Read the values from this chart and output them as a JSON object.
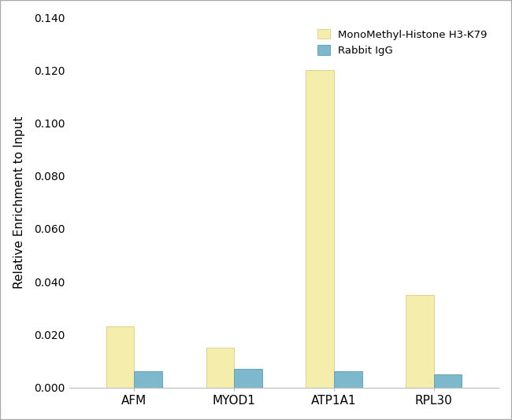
{
  "categories": [
    "AFM",
    "MYOD1",
    "ATP1A1",
    "RPL30"
  ],
  "series": [
    {
      "label": "MonoMethyl-Histone H3-K79",
      "values": [
        0.023,
        0.015,
        0.12,
        0.035
      ],
      "color": "#F5EDAC",
      "edgecolor": "#D8CC88"
    },
    {
      "label": "Rabbit IgG",
      "values": [
        0.006,
        0.007,
        0.006,
        0.005
      ],
      "color": "#7EB8CC",
      "edgecolor": "#5A9AB5"
    }
  ],
  "ylabel": "Relative Enrichment to Input",
  "ylim": [
    0,
    0.14
  ],
  "yticks": [
    0.0,
    0.02,
    0.04,
    0.06,
    0.08,
    0.1,
    0.12,
    0.14
  ],
  "ytick_labels": [
    "0.000",
    "0.020",
    "0.040",
    "0.060",
    "0.080",
    "0.100",
    "0.120",
    "0.140"
  ],
  "bar_width": 0.28,
  "background_color": "#FFFFFF",
  "border_color": "#AAAAAA",
  "legend_position": "upper right",
  "figsize": [
    6.5,
    5.34
  ],
  "dpi": 100
}
